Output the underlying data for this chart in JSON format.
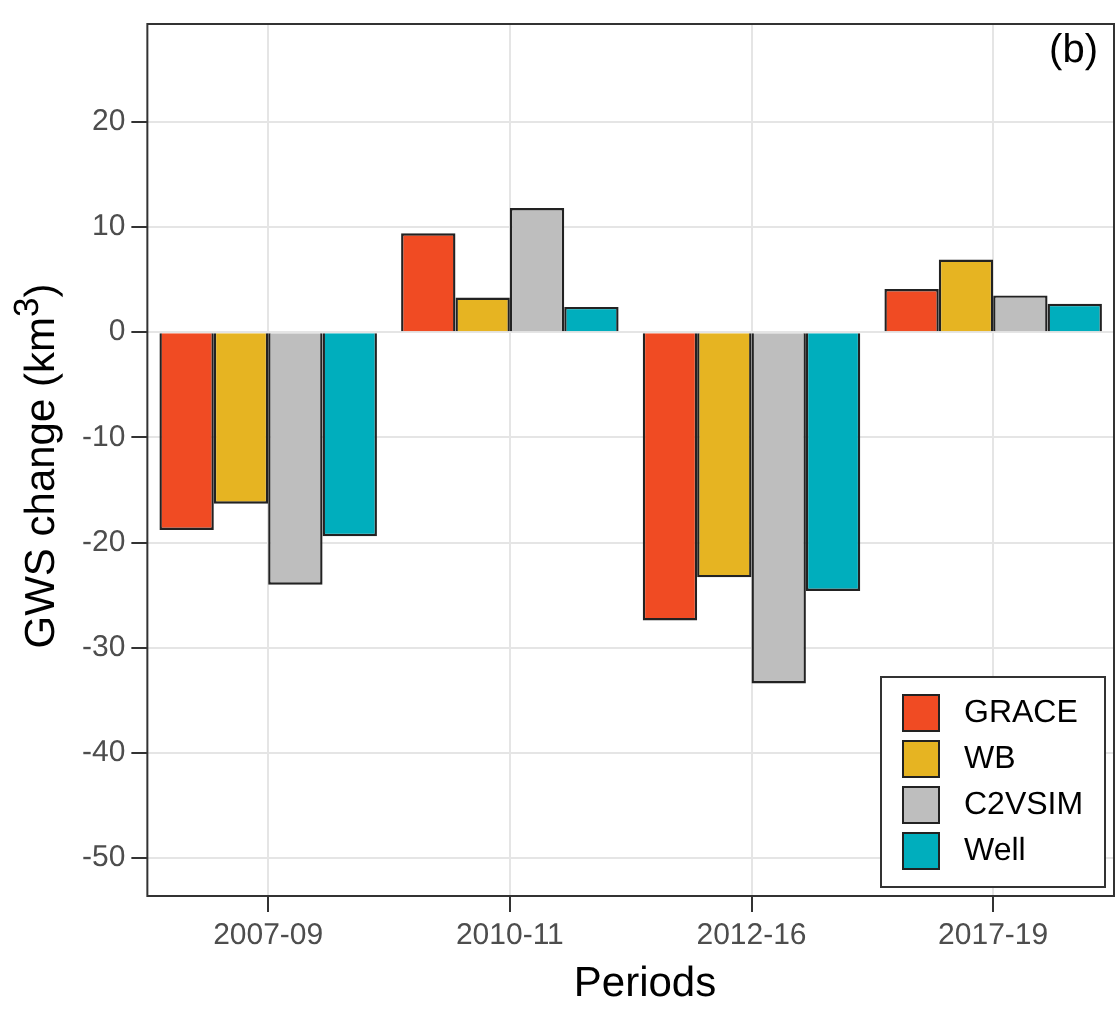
{
  "chart_data": {
    "type": "bar",
    "annotations": [
      "(b)"
    ],
    "xlabel": "Periods",
    "ylabel": "GWS change (km$^{3}$)",
    "categories": [
      "2007-09",
      "2010-11",
      "2012-16",
      "2017-19"
    ],
    "series": [
      {
        "name": "GRACE",
        "color": "#f04b23",
        "values": [
          -18.8,
          9.4,
          -27.4,
          4.1
        ]
      },
      {
        "name": "WB",
        "color": "#e6b422",
        "values": [
          -16.3,
          3.3,
          -23.3,
          6.9
        ]
      },
      {
        "name": "C2VSIM",
        "color": "#bebebe",
        "values": [
          -24.0,
          11.8,
          -33.4,
          3.5
        ]
      },
      {
        "name": "Well",
        "color": "#00aebd",
        "values": [
          -19.4,
          2.4,
          -24.6,
          2.7
        ]
      }
    ],
    "ylim": [
      -53.6,
      29.3
    ],
    "yticks": [
      -50,
      -40,
      -30,
      -20,
      -10,
      0,
      10,
      20
    ],
    "grid": true,
    "legend": "bottom right"
  }
}
